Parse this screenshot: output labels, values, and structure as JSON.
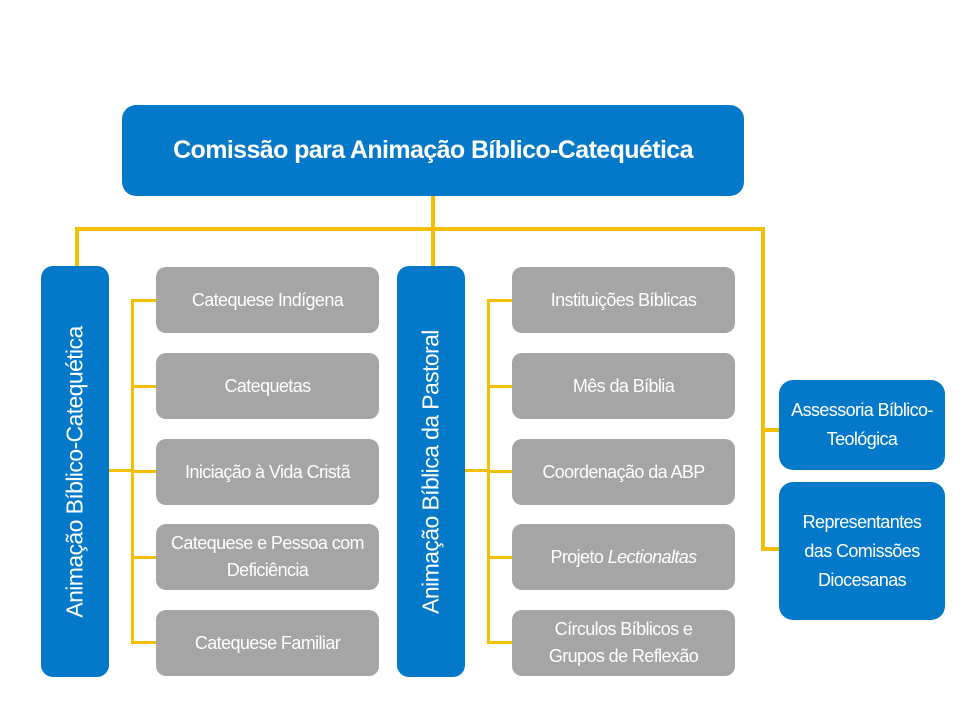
{
  "title": "Comissão para Animação Bíblico-Catequética",
  "branches": [
    {
      "label": "Animação Bíblico-Catequética",
      "items": [
        "Catequese Indígena",
        "Catequetas",
        "Iniciação à Vida Cristã",
        "Catequese e Pessoa com Deficiência",
        "Catequese Familiar"
      ]
    },
    {
      "label": "Animação Bíblica da Pastoral",
      "items": [
        "Instituições Bíblicas",
        "Mês da Bíblia",
        "Coordenação da ABP",
        "Projeto",
        "Círculos Bíblicos e Grupos de Reflexão"
      ],
      "project_name_italic": "Lectionaltas"
    }
  ],
  "side_boxes": [
    "Assessoria Bíblico-Teológica",
    "Representantes das Comissões Diocesanas"
  ],
  "colors": {
    "blue": "#0579c9",
    "gray": "#a5a5a5",
    "connector": "#f6be00"
  }
}
